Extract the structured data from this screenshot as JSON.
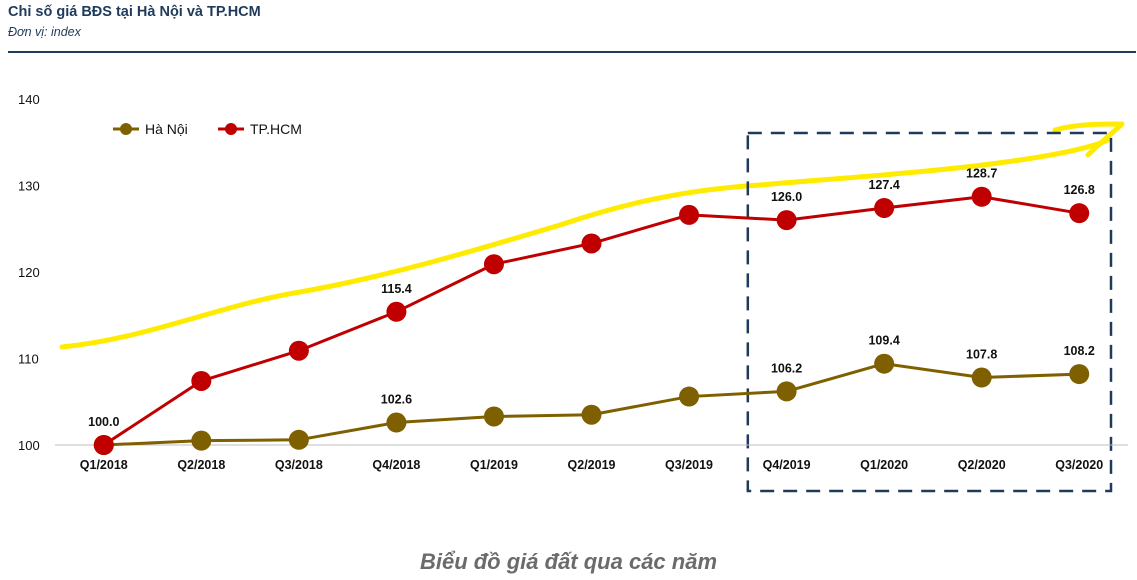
{
  "header": {
    "title": "Chỉ số giá BĐS tại Hà Nội và TP.HCM",
    "subtitle": "Đơn vị: index"
  },
  "caption": "Biểu đồ giá đất qua các năm",
  "chart_data": {
    "type": "line",
    "categories": [
      "Q1/2018",
      "Q2/2018",
      "Q3/2018",
      "Q4/2018",
      "Q1/2019",
      "Q2/2019",
      "Q3/2019",
      "Q4/2019",
      "Q1/2020",
      "Q2/2020",
      "Q3/2020"
    ],
    "series": [
      {
        "name": "Hà Nội",
        "color": "#7f6000",
        "values": [
          100.0,
          100.5,
          100.6,
          102.6,
          103.3,
          103.5,
          105.6,
          106.2,
          109.4,
          107.8,
          108.2
        ],
        "labels": [
          "",
          "",
          "",
          "102.6",
          "",
          "",
          "",
          "106.2",
          "109.4",
          "107.8",
          "108.2"
        ]
      },
      {
        "name": "TP.HCM",
        "color": "#c00000",
        "values": [
          100.0,
          107.4,
          110.9,
          115.4,
          120.9,
          123.3,
          126.6,
          126.0,
          127.4,
          128.7,
          126.8
        ],
        "labels": [
          "100.0",
          "",
          "",
          "115.4",
          "",
          "",
          "",
          "126.0",
          "127.4",
          "128.7",
          "126.8"
        ]
      }
    ],
    "y_ticks": [
      "100",
      "110",
      "120",
      "130",
      "140"
    ],
    "ylim": [
      100,
      140
    ],
    "legend_position": "top-left",
    "grid": false,
    "trend_arrow_color": "#ffeb00",
    "highlight_box": {
      "from_category": "Q4/2019",
      "to_category": "Q3/2020",
      "color": "#1f3a5a"
    }
  }
}
